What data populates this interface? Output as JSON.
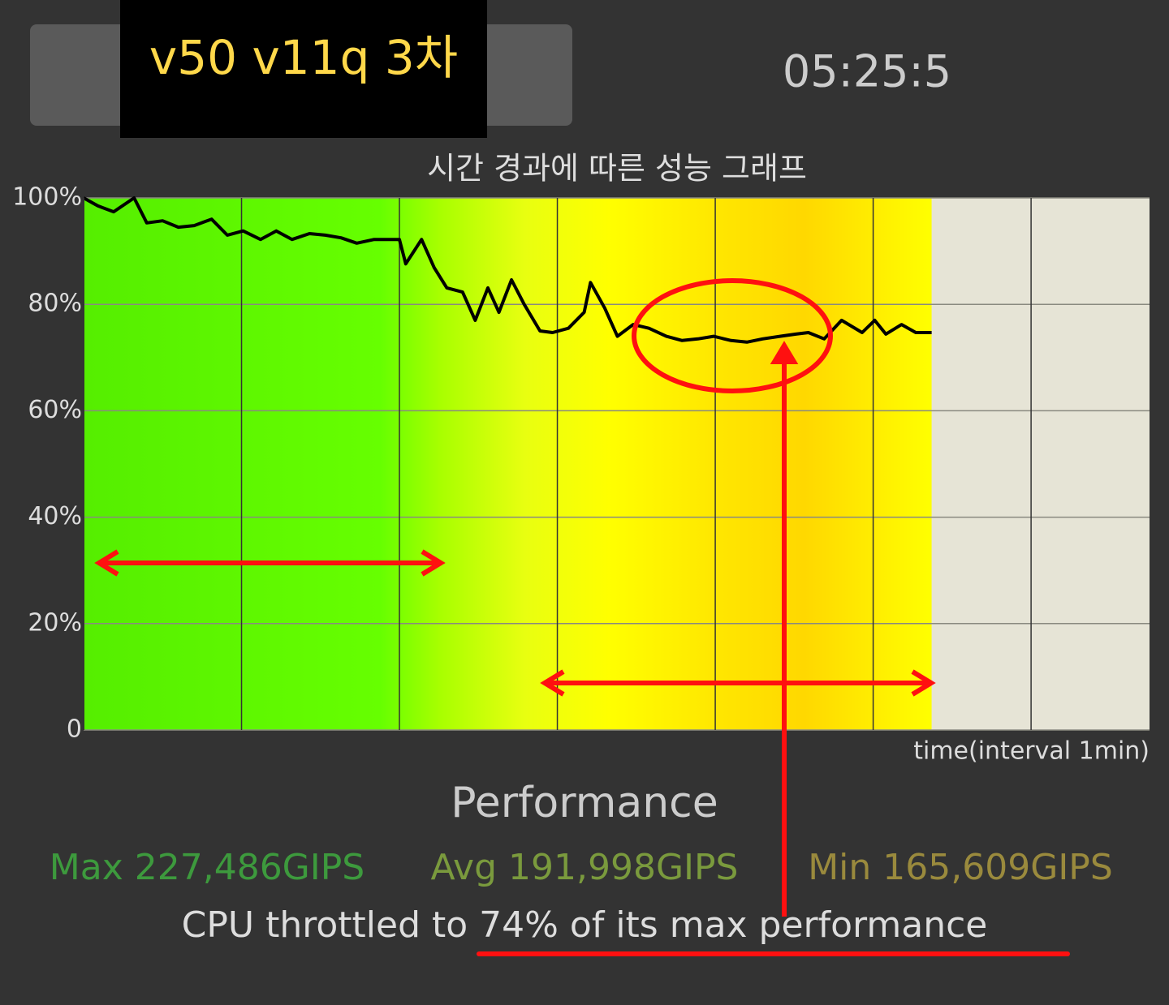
{
  "header": {
    "overlay_label": "v50 v11q 3차",
    "clock": "05:25:5"
  },
  "chart_data": {
    "type": "line",
    "title": "시간 경과에 따른 성능 그래프",
    "xlabel": "time(interval 1min)",
    "x": [
      0,
      0.09,
      0.19,
      0.32,
      0.4,
      0.5,
      0.6,
      0.7,
      0.81,
      0.91,
      1.01,
      1.12,
      1.22,
      1.32,
      1.43,
      1.53,
      1.63,
      1.73,
      1.84,
      1.94,
      2.0,
      2.04,
      2.14,
      2.22,
      2.3,
      2.4,
      2.48,
      2.56,
      2.63,
      2.71,
      2.79,
      2.89,
      2.97,
      3.07,
      3.17,
      3.21,
      3.3,
      3.38,
      3.48,
      3.58,
      3.69,
      3.79,
      3.89,
      3.99,
      4.1,
      4.2,
      4.3,
      4.41,
      4.51,
      4.59,
      4.69,
      4.8,
      4.93,
      5.01,
      5.08,
      5.18,
      5.27,
      5.37
    ],
    "values": [
      100,
      98.5,
      97.4,
      100,
      95.3,
      95.7,
      94.5,
      94.8,
      96,
      93,
      93.8,
      92.2,
      93.8,
      92.2,
      93.3,
      93,
      92.5,
      91.5,
      92.2,
      92.2,
      92.2,
      87.6,
      92.2,
      86.9,
      83.1,
      82.3,
      77,
      83.1,
      78.5,
      84.6,
      80,
      75,
      74.7,
      75.5,
      78.5,
      84.1,
      79.3,
      74,
      76.2,
      75.5,
      74,
      73.2,
      73.5,
      74,
      73.2,
      72.9,
      73.5,
      74,
      74.4,
      74.7,
      73.5,
      77,
      74.7,
      77,
      74.4,
      76.2,
      74.7,
      74.7
    ],
    "color": "#000000",
    "xlim": [
      0,
      6.75
    ],
    "xticks": [
      1,
      2,
      3,
      4,
      5,
      6
    ],
    "ylim": [
      0,
      100
    ],
    "yticks": [
      0,
      {
        "value": 20,
        "label": "20%"
      },
      {
        "value": 40,
        "label": "40%"
      },
      {
        "value": 60,
        "label": "60%"
      },
      {
        "value": 80,
        "label": "80%"
      },
      {
        "value": 100,
        "label": "100%"
      }
    ],
    "grid": true
  },
  "stats": {
    "heading": "Performance",
    "max": "Max 227,486GIPS",
    "avg": "Avg 191,998GIPS",
    "min": "Min 165,609GIPS"
  },
  "caption": "CPU throttled to 74% of its max performance"
}
